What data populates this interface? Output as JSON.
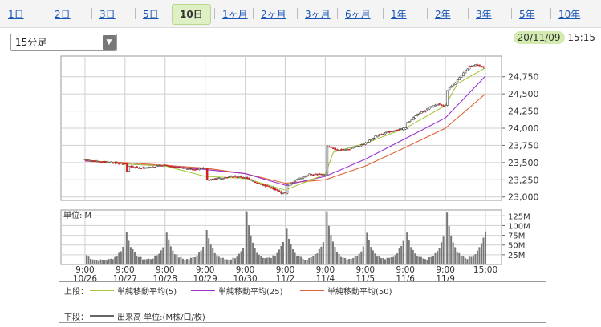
{
  "tabs": [
    {
      "label": "1日"
    },
    {
      "label": "2日"
    },
    {
      "label": "3日"
    },
    {
      "label": "5日"
    },
    {
      "label": "10日",
      "active": true
    },
    {
      "label": "1ヶ月"
    },
    {
      "label": "2ヶ月"
    },
    {
      "label": "3ヶ月"
    },
    {
      "label": "6ヶ月"
    },
    {
      "label": "1年"
    },
    {
      "label": "2年"
    },
    {
      "label": "3年"
    },
    {
      "label": "5年"
    },
    {
      "label": "10年"
    }
  ],
  "interval_select": {
    "value": "15分足"
  },
  "timestamp": {
    "date": "20/11/09",
    "time": "15:15"
  },
  "legend": {
    "upper_label": "上段：",
    "lower_label": "下段：",
    "ma5": "単純移動平均(5)",
    "ma25": "単純移動平均(25)",
    "ma50": "単純移動平均(50)",
    "volume": "出来高 単位:(M株/口/枚)"
  },
  "colors": {
    "candle": "#cc2222",
    "ma5": "#a8c83c",
    "ma25": "#9b30d0",
    "ma50": "#e06438",
    "volume": "#777777",
    "grid": "#d0d0d0",
    "date_highlight": "#d3ebb0"
  },
  "chart_data": [
    {
      "type": "line",
      "y_ticks": [
        23000,
        23250,
        23500,
        23750,
        24000,
        24250,
        24500,
        24750
      ],
      "y_tick_labels": [
        "23,000",
        "23,250",
        "23,500",
        "23,750",
        "24,000",
        "24,250",
        "24,500",
        "24,750"
      ],
      "ylim": [
        22950,
        25050
      ],
      "x_labels": [
        {
          "time": "9:00",
          "date": "10/26"
        },
        {
          "time": "9:00",
          "date": "10/27"
        },
        {
          "time": "9:00",
          "date": "10/28"
        },
        {
          "time": "9:00",
          "date": "10/29"
        },
        {
          "time": "9:00",
          "date": "10/30"
        },
        {
          "time": "9:00",
          "date": "11/2"
        },
        {
          "time": "9:00",
          "date": "11/4"
        },
        {
          "time": "9:00",
          "date": "11/5"
        },
        {
          "time": "9:00",
          "date": "11/6"
        },
        {
          "time": "9:00",
          "date": "11/9"
        },
        {
          "time": "15:00",
          "date": ""
        }
      ],
      "price": [
        [
          0,
          23540
        ],
        [
          0.3,
          23520
        ],
        [
          0.7,
          23500
        ],
        [
          1.0,
          23480
        ],
        [
          1.05,
          23380
        ],
        [
          1.1,
          23450
        ],
        [
          1.4,
          23420
        ],
        [
          1.7,
          23440
        ],
        [
          2.0,
          23460
        ],
        [
          2.3,
          23430
        ],
        [
          2.7,
          23400
        ],
        [
          3.0,
          23420
        ],
        [
          3.05,
          23250
        ],
        [
          3.3,
          23270
        ],
        [
          3.7,
          23300
        ],
        [
          4.0,
          23280
        ],
        [
          4.3,
          23200
        ],
        [
          4.6,
          23150
        ],
        [
          4.9,
          23060
        ],
        [
          5.0,
          23060
        ],
        [
          5.05,
          23160
        ],
        [
          5.3,
          23260
        ],
        [
          5.6,
          23330
        ],
        [
          6.0,
          23330
        ],
        [
          6.05,
          23740
        ],
        [
          6.3,
          23680
        ],
        [
          6.6,
          23700
        ],
        [
          7.0,
          23780
        ],
        [
          7.3,
          23900
        ],
        [
          7.6,
          23950
        ],
        [
          8.0,
          24000
        ],
        [
          8.05,
          24080
        ],
        [
          8.3,
          24200
        ],
        [
          8.6,
          24300
        ],
        [
          8.8,
          24350
        ],
        [
          9.0,
          24330
        ],
        [
          9.05,
          24560
        ],
        [
          9.3,
          24700
        ],
        [
          9.6,
          24900
        ],
        [
          9.8,
          24930
        ],
        [
          10.0,
          24870
        ]
      ],
      "ma5": [
        [
          0,
          23540
        ],
        [
          1,
          23480
        ],
        [
          2,
          23450
        ],
        [
          3,
          23300
        ],
        [
          4,
          23270
        ],
        [
          5,
          23100
        ],
        [
          6,
          23330
        ],
        [
          6.2,
          23650
        ],
        [
          7,
          23780
        ],
        [
          8,
          24000
        ],
        [
          9,
          24330
        ],
        [
          9.3,
          24650
        ],
        [
          10,
          24880
        ]
      ],
      "ma25": [
        [
          0,
          23530
        ],
        [
          1,
          23480
        ],
        [
          2,
          23450
        ],
        [
          3,
          23400
        ],
        [
          4,
          23340
        ],
        [
          5,
          23170
        ],
        [
          6,
          23300
        ],
        [
          7,
          23550
        ],
        [
          8,
          23850
        ],
        [
          9,
          24150
        ],
        [
          10,
          24760
        ]
      ],
      "ma50": [
        [
          0,
          23520
        ],
        [
          1,
          23500
        ],
        [
          2,
          23460
        ],
        [
          3,
          23420
        ],
        [
          4,
          23340
        ],
        [
          5,
          23200
        ],
        [
          6,
          23250
        ],
        [
          7,
          23450
        ],
        [
          8,
          23720
        ],
        [
          9,
          24000
        ],
        [
          10,
          24500
        ]
      ]
    },
    {
      "type": "bar",
      "title": "単位: M",
      "y_ticks": [
        25,
        50,
        75,
        100,
        125
      ],
      "y_tick_labels": [
        "25M",
        "50M",
        "75M",
        "100M",
        "125M"
      ],
      "ylim": [
        0,
        140
      ],
      "session_opens": [
        0,
        1,
        2,
        3,
        4,
        5,
        6,
        7,
        8,
        9,
        10
      ],
      "open_volume": [
        15,
        75,
        75,
        80,
        125,
        80,
        130,
        75,
        75,
        125,
        50
      ],
      "close_volume": [
        8,
        60,
        60,
        65,
        50,
        85,
        85,
        60,
        90,
        100,
        100
      ]
    }
  ]
}
